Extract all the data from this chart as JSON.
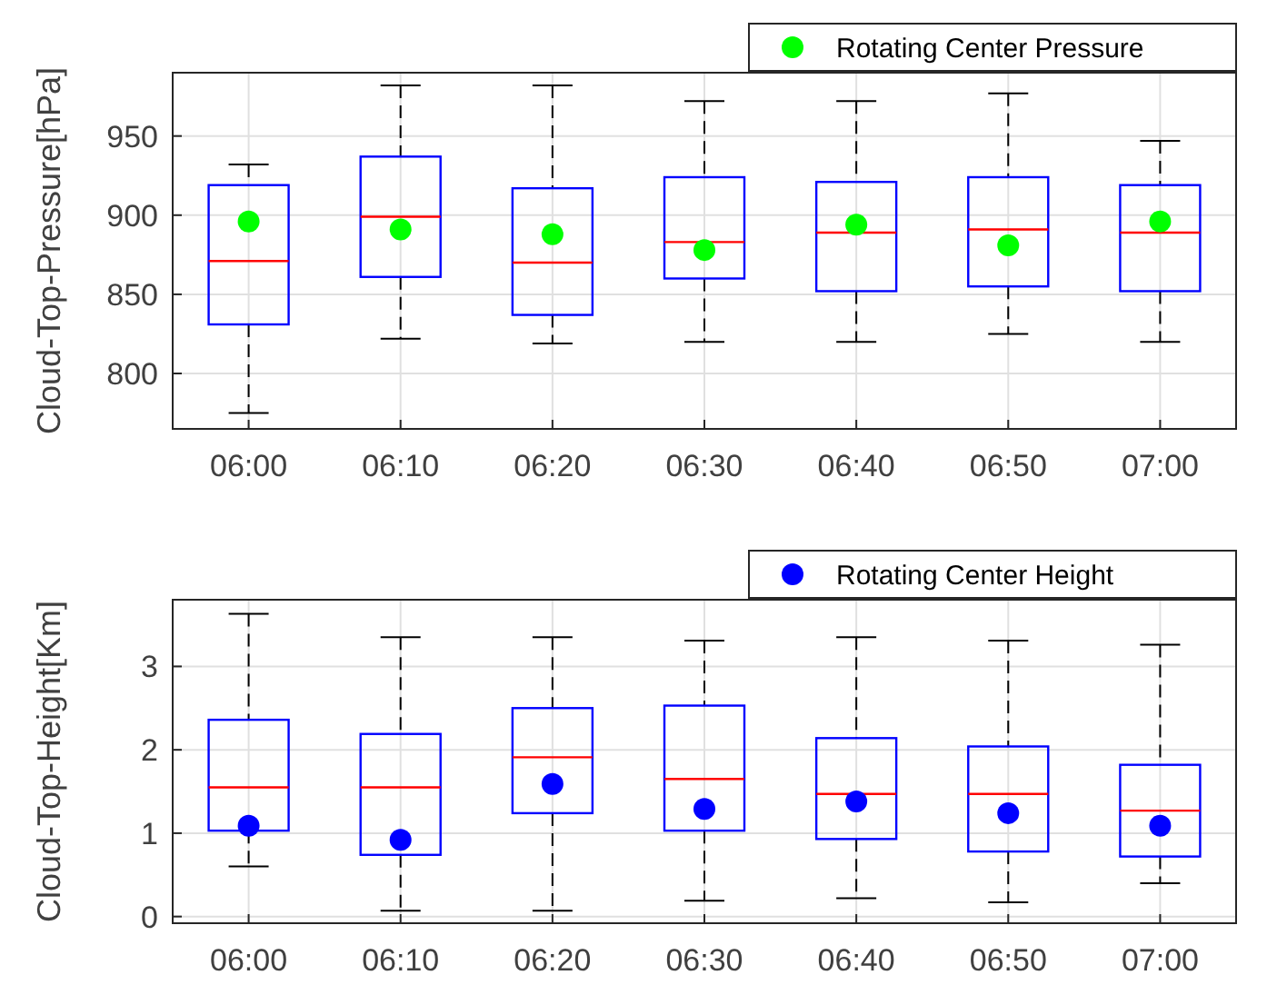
{
  "chart_data": [
    {
      "type": "box",
      "ylabel": "Cloud-Top-Pressure[hPa]",
      "categories": [
        "06:00",
        "06:10",
        "06:20",
        "06:30",
        "06:40",
        "06:50",
        "07:00"
      ],
      "ylim": [
        765,
        990
      ],
      "yticks": [
        800,
        850,
        900,
        950
      ],
      "grid": true,
      "legend": "top right",
      "series": [
        {
          "type": "box",
          "color": "#0000ff",
          "boxes": [
            {
              "low": 775,
              "q1": 831,
              "median": 871,
              "q3": 919,
              "high": 932
            },
            {
              "low": 822,
              "q1": 861,
              "median": 899,
              "q3": 937,
              "high": 982
            },
            {
              "low": 819,
              "q1": 837,
              "median": 870,
              "q3": 917,
              "high": 982
            },
            {
              "low": 820,
              "q1": 860,
              "median": 883,
              "q3": 924,
              "high": 972
            },
            {
              "low": 820,
              "q1": 852,
              "median": 889,
              "q3": 921,
              "high": 972
            },
            {
              "low": 825,
              "q1": 855,
              "median": 891,
              "q3": 924,
              "high": 977
            },
            {
              "low": 820,
              "q1": 852,
              "median": 889,
              "q3": 919,
              "high": 947
            }
          ]
        },
        {
          "type": "scatter",
          "name": "Rotating Center Pressure",
          "color": "#00ff00",
          "marker": "circle",
          "x": [
            "06:00",
            "06:10",
            "06:20",
            "06:30",
            "06:40",
            "06:50",
            "07:00"
          ],
          "values": [
            896,
            891,
            888,
            878,
            894,
            881,
            896
          ]
        }
      ]
    },
    {
      "type": "box",
      "ylabel": "Cloud-Top-Height[Km]",
      "categories": [
        "06:00",
        "06:10",
        "06:20",
        "06:30",
        "06:40",
        "06:50",
        "07:00"
      ],
      "ylim": [
        -0.08,
        3.8
      ],
      "yticks": [
        0,
        1,
        2,
        3
      ],
      "grid": true,
      "legend": "top right",
      "series": [
        {
          "type": "box",
          "color": "#0000ff",
          "boxes": [
            {
              "low": 0.6,
              "q1": 1.03,
              "median": 1.55,
              "q3": 2.36,
              "high": 3.63
            },
            {
              "low": 0.07,
              "q1": 0.74,
              "median": 1.55,
              "q3": 2.19,
              "high": 3.35
            },
            {
              "low": 0.07,
              "q1": 1.24,
              "median": 1.91,
              "q3": 2.5,
              "high": 3.35
            },
            {
              "low": 0.19,
              "q1": 1.03,
              "median": 1.65,
              "q3": 2.53,
              "high": 3.31
            },
            {
              "low": 0.22,
              "q1": 0.93,
              "median": 1.47,
              "q3": 2.14,
              "high": 3.35
            },
            {
              "low": 0.17,
              "q1": 0.78,
              "median": 1.47,
              "q3": 2.04,
              "high": 3.31
            },
            {
              "low": 0.4,
              "q1": 0.72,
              "median": 1.27,
              "q3": 1.82,
              "high": 3.26
            }
          ]
        },
        {
          "type": "scatter",
          "name": "Rotating Center Height",
          "color": "#0000ff",
          "marker": "circle",
          "x": [
            "06:00",
            "06:10",
            "06:20",
            "06:30",
            "06:40",
            "06:50",
            "07:00"
          ],
          "values": [
            1.09,
            0.92,
            1.59,
            1.29,
            1.38,
            1.24,
            1.09
          ]
        }
      ]
    }
  ]
}
